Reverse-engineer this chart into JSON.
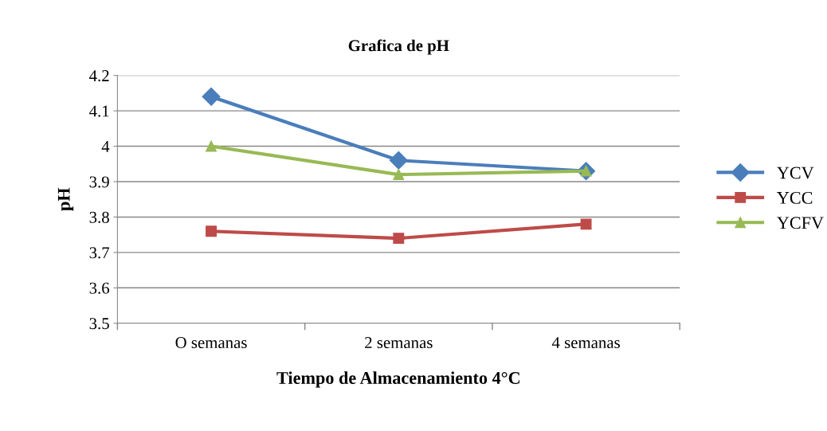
{
  "chart_data": {
    "type": "line",
    "title": "Grafica de pH",
    "xlabel": "Tiempo de Almacenamiento 4°C",
    "ylabel": "pH",
    "categories": [
      "O semanas",
      "2 semanas",
      "4 semanas"
    ],
    "series": [
      {
        "name": "YCV",
        "color": "#4a7ebb",
        "marker": "diamond",
        "values": [
          4.14,
          3.96,
          3.93
        ]
      },
      {
        "name": "YCC",
        "color": "#be4b48",
        "marker": "square",
        "values": [
          3.76,
          3.74,
          3.78
        ]
      },
      {
        "name": "YCFV",
        "color": "#98b954",
        "marker": "triangle",
        "values": [
          4.0,
          3.92,
          3.93
        ]
      }
    ],
    "ylim": [
      3.5,
      4.2
    ],
    "yticks": [
      3.5,
      3.6,
      3.7,
      3.8,
      3.9,
      4,
      4.1,
      4.2
    ],
    "grid": "y",
    "legend": "right",
    "line_style": "solid"
  }
}
